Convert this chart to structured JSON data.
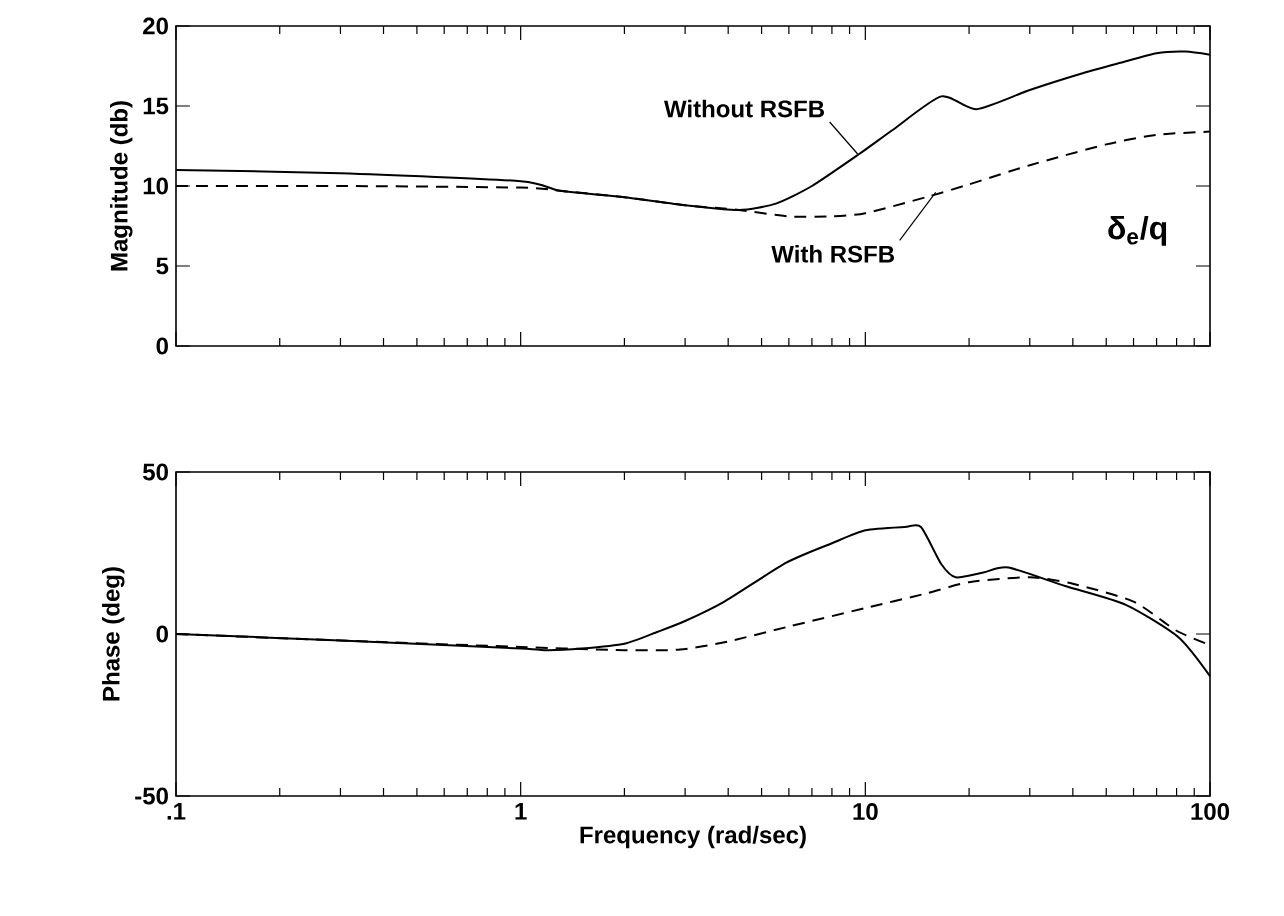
{
  "chart_data": [
    {
      "type": "line",
      "ylabel": "Magnitude (db)",
      "log": "x",
      "xlim": [
        0.1,
        100
      ],
      "ylim": [
        0,
        20
      ],
      "xticks": [
        0.1,
        1,
        10,
        100
      ],
      "yticks": [
        0,
        5,
        10,
        15,
        20
      ],
      "tick_labels": "y",
      "grid": false,
      "marker": "none",
      "series": [
        {
          "color": "#000000",
          "line_style": "solid",
          "x": [
            0.1,
            0.3,
            1,
            1.3,
            2,
            3,
            4.3,
            5.5,
            7,
            9.6,
            12,
            16.6,
            21,
            30,
            42,
            55,
            70,
            85,
            100
          ],
          "values": [
            11,
            10.8,
            10.3,
            9.7,
            9.3,
            8.8,
            8.5,
            8.9,
            10,
            12,
            13.5,
            15.6,
            14.8,
            16,
            17,
            17.7,
            18.3,
            18.4,
            18.2
          ]
        },
        {
          "color": "#000000",
          "line_style": "dashed",
          "x": [
            0.1,
            0.3,
            1,
            1.3,
            2,
            3,
            4.3,
            6,
            8,
            10,
            15,
            20,
            30,
            50,
            70,
            100
          ],
          "values": [
            10,
            10,
            9.9,
            9.7,
            9.3,
            8.8,
            8.5,
            8.1,
            8.1,
            8.3,
            9.3,
            10.1,
            11.3,
            12.6,
            13.2,
            13.4
          ]
        }
      ],
      "annotations": [
        {
          "text": "Without RSFB",
          "x": 9.5,
          "y": 12
        },
        {
          "text": "With RSFB",
          "x": 16,
          "y": 9.6
        },
        "δ$_{e}$/q"
      ]
    },
    {
      "type": "line",
      "ylabel": "Phase (deg)",
      "xlabel": "Frequency (rad/sec)",
      "log": "x",
      "xlim": [
        0.1,
        100
      ],
      "ylim": [
        -50,
        50
      ],
      "xticks": [
        {
          "value": 0.1,
          "label": ".1"
        },
        1,
        10,
        100
      ],
      "yticks": [
        -50,
        0,
        50
      ],
      "grid": false,
      "marker": "none",
      "series": [
        {
          "color": "#000000",
          "line_style": "solid",
          "x": [
            0.1,
            0.3,
            1,
            1.2,
            1.5,
            2,
            2.5,
            3,
            3.9,
            5.9,
            8,
            10,
            13,
            14.5,
            16.6,
            18.3,
            22,
            26,
            38,
            57,
            81,
            100
          ],
          "values": [
            0,
            -2,
            -4.5,
            -5,
            -4.5,
            -3,
            0.7,
            4,
            10,
            22,
            28,
            32,
            33,
            33,
            21.6,
            17.5,
            19,
            20.5,
            14.8,
            9,
            -1,
            -13
          ]
        },
        {
          "color": "#000000",
          "line_style": "dashed",
          "x": [
            0.1,
            0.3,
            1,
            2,
            2.9,
            4,
            6,
            10,
            15,
            20,
            30,
            40,
            60,
            80,
            100
          ],
          "values": [
            0,
            -2,
            -4,
            -5,
            -4.8,
            -2.3,
            2.3,
            8,
            12.5,
            16,
            17.5,
            15.5,
            10,
            1,
            -3.4
          ]
        }
      ]
    }
  ]
}
